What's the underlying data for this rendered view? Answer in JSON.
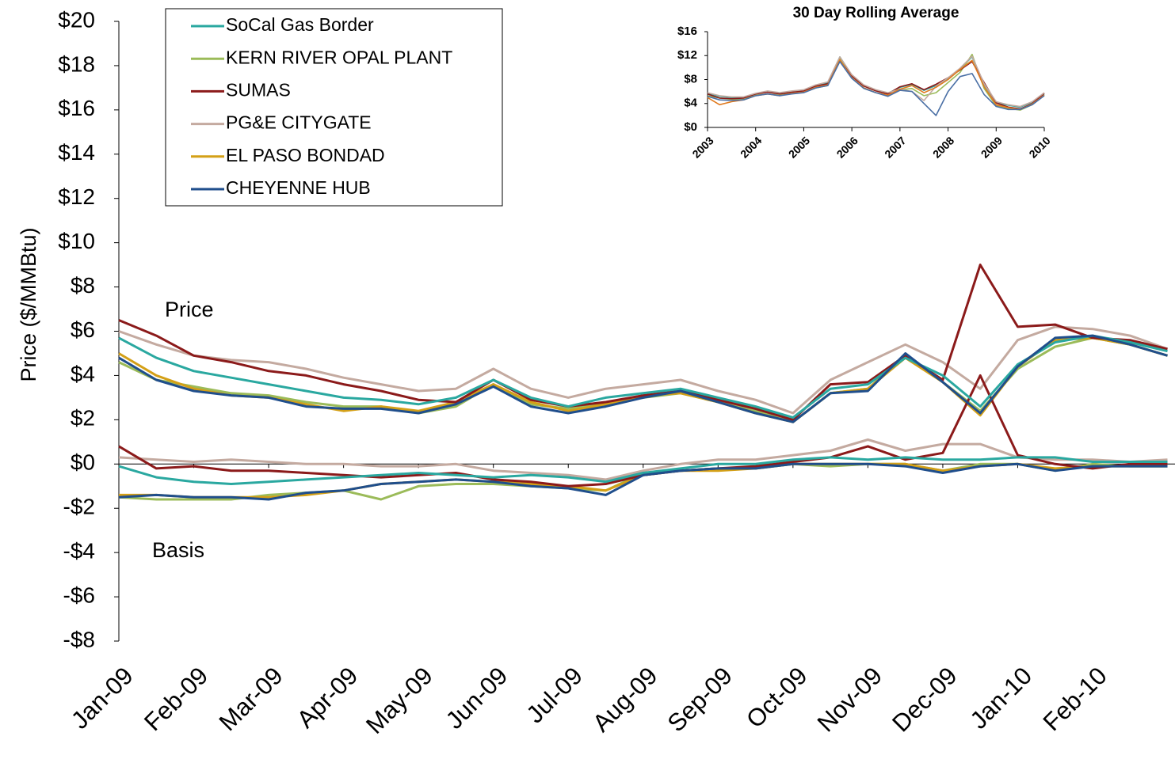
{
  "chart_data": [
    {
      "type": "line",
      "y_label": "Price ($/MMBtu)",
      "annotations": [
        "Price",
        "Basis"
      ],
      "legend": "upper left",
      "x": [
        0,
        0.5,
        1,
        1.5,
        2,
        2.5,
        3,
        3.5,
        4,
        4.5,
        5,
        5.5,
        6,
        6.5,
        7,
        7.5,
        8,
        8.5,
        9,
        9.5,
        10,
        10.5,
        11,
        11.5,
        12,
        12.5,
        13,
        13.5,
        14
      ],
      "xlim": [
        0,
        14.1
      ],
      "xticks": [
        {
          "value": 0,
          "label": "Jan-09"
        },
        {
          "value": 1,
          "label": "Feb-09"
        },
        {
          "value": 2,
          "label": "Mar-09"
        },
        {
          "value": 3,
          "label": "Apr-09"
        },
        {
          "value": 4,
          "label": "May-09"
        },
        {
          "value": 5,
          "label": "Jun-09"
        },
        {
          "value": 6,
          "label": "Jul-09"
        },
        {
          "value": 7,
          "label": "Aug-09"
        },
        {
          "value": 8,
          "label": "Sep-09"
        },
        {
          "value": 9,
          "label": "Oct-09"
        },
        {
          "value": 10,
          "label": "Nov-09"
        },
        {
          "value": 11,
          "label": "Dec-09"
        },
        {
          "value": 12,
          "label": "Jan-10"
        },
        {
          "value": 13,
          "label": "Feb-10"
        }
      ],
      "ylim": [
        -8,
        20
      ],
      "yticks": [
        {
          "value": 20,
          "label": "$20"
        },
        {
          "value": 18,
          "label": "$18"
        },
        {
          "value": 16,
          "label": "$16"
        },
        {
          "value": 14,
          "label": "$14"
        },
        {
          "value": 12,
          "label": "$12"
        },
        {
          "value": 10,
          "label": "$10"
        },
        {
          "value": 8,
          "label": "$8"
        },
        {
          "value": 6,
          "label": "$6"
        },
        {
          "value": 4,
          "label": "$4"
        },
        {
          "value": 2,
          "label": "$2"
        },
        {
          "value": 0,
          "label": "$0"
        },
        {
          "value": -2,
          "label": "-$2"
        },
        {
          "value": -4,
          "label": "-$4"
        },
        {
          "value": -6,
          "label": "-$6"
        },
        {
          "value": -8,
          "label": "-$8"
        }
      ],
      "series": [
        {
          "name": "SoCal Gas Border",
          "color": "#2aa8a0",
          "values": [
            5.7,
            4.8,
            4.2,
            3.9,
            3.6,
            3.3,
            3.0,
            2.9,
            2.7,
            3.0,
            3.8,
            3.0,
            2.6,
            3.0,
            3.2,
            3.4,
            3.0,
            2.6,
            2.1,
            3.4,
            3.6,
            4.8,
            4.0,
            2.6,
            4.5,
            5.5,
            5.8,
            5.5,
            5.1
          ],
          "basis": [
            -0.1,
            -0.6,
            -0.8,
            -0.9,
            -0.8,
            -0.7,
            -0.6,
            -0.5,
            -0.4,
            -0.5,
            -0.6,
            -0.5,
            -0.6,
            -0.8,
            -0.4,
            -0.2,
            0,
            0,
            0.2,
            0.3,
            0.2,
            0.3,
            0.2,
            0.2,
            0.3,
            0.3,
            0.1,
            0.1,
            0.1
          ]
        },
        {
          "name": "KERN RIVER OPAL PLANT",
          "color": "#9bbb59",
          "values": [
            4.6,
            3.8,
            3.5,
            3.2,
            3.1,
            2.8,
            2.6,
            2.6,
            2.3,
            2.6,
            3.6,
            2.7,
            2.5,
            2.7,
            3.0,
            3.2,
            2.8,
            2.4,
            1.9,
            3.2,
            3.4,
            4.9,
            3.7,
            2.4,
            4.3,
            5.3,
            5.7,
            5.4,
            4.9
          ],
          "basis": [
            -1.5,
            -1.6,
            -1.6,
            -1.6,
            -1.4,
            -1.3,
            -1.2,
            -1.6,
            -1,
            -0.9,
            -0.9,
            -1,
            -1.1,
            -1.2,
            -0.4,
            -0.3,
            -0.2,
            -0.2,
            0,
            -0.1,
            0,
            0,
            -0.3,
            0,
            0,
            -0.3,
            0,
            -0.1,
            -0.1
          ]
        },
        {
          "name": "SUMAS",
          "color": "#8b1a1a",
          "values": [
            6.5,
            5.8,
            4.9,
            4.6,
            4.2,
            4.0,
            3.6,
            3.3,
            2.9,
            2.8,
            3.8,
            2.9,
            2.6,
            2.8,
            3.1,
            3.3,
            2.9,
            2.5,
            2.0,
            3.6,
            3.7,
            4.9,
            3.8,
            9.0,
            6.2,
            6.3,
            5.7,
            5.6,
            5.2
          ],
          "basis": [
            0.8,
            -0.2,
            -0.1,
            -0.3,
            -0.3,
            -0.4,
            -0.5,
            -0.6,
            -0.5,
            -0.4,
            -0.7,
            -0.8,
            -1.0,
            -0.9,
            -0.5,
            -0.3,
            -0.2,
            -0.1,
            0.1,
            0.3,
            0.8,
            0.2,
            0.5,
            4.0,
            0.4,
            0,
            -0.2,
            0,
            0
          ]
        },
        {
          "name": "PG&E CITYGATE",
          "color": "#c4aaa0",
          "values": [
            6.0,
            5.4,
            4.9,
            4.7,
            4.6,
            4.3,
            3.9,
            3.6,
            3.3,
            3.4,
            4.3,
            3.4,
            3.0,
            3.4,
            3.6,
            3.8,
            3.3,
            2.9,
            2.3,
            3.8,
            4.6,
            5.4,
            4.6,
            3.4,
            5.6,
            6.2,
            6.1,
            5.8,
            5.2
          ],
          "basis": [
            0.3,
            0.2,
            0.1,
            0.2,
            0.1,
            0,
            0,
            -0.1,
            -0.1,
            0,
            -0.3,
            -0.4,
            -0.5,
            -0.7,
            -0.3,
            0,
            0.2,
            0.2,
            0.4,
            0.6,
            1.1,
            0.6,
            0.9,
            0.9,
            0.3,
            0.2,
            0.2,
            0.1,
            0.2
          ]
        },
        {
          "name": "EL PASO BONDAD",
          "color": "#d4a017",
          "values": [
            5.0,
            4.0,
            3.4,
            3.1,
            3.0,
            2.7,
            2.4,
            2.6,
            2.4,
            2.8,
            3.6,
            2.8,
            2.4,
            2.7,
            3.1,
            3.2,
            2.8,
            2.3,
            1.9,
            3.2,
            3.4,
            4.8,
            3.7,
            2.2,
            4.4,
            5.6,
            5.7,
            5.4,
            4.9
          ],
          "basis": [
            -1.4,
            -1.4,
            -1.5,
            -1.5,
            -1.5,
            -1.4,
            -1.2,
            -0.9,
            -0.8,
            -0.7,
            -0.8,
            -0.9,
            -1.0,
            -1.2,
            -0.5,
            -0.3,
            -0.3,
            -0.2,
            0,
            0,
            0,
            0,
            -0.3,
            -0.1,
            0,
            -0.2,
            -0.1,
            -0.1,
            -0.1
          ]
        },
        {
          "name": "CHEYENNE HUB",
          "color": "#1f4e8c",
          "values": [
            4.8,
            3.8,
            3.3,
            3.1,
            3.0,
            2.6,
            2.5,
            2.5,
            2.3,
            2.7,
            3.5,
            2.6,
            2.3,
            2.6,
            3.0,
            3.3,
            2.8,
            2.3,
            1.9,
            3.2,
            3.3,
            5.0,
            3.7,
            2.3,
            4.4,
            5.7,
            5.8,
            5.4,
            4.9
          ],
          "basis": [
            -1.5,
            -1.4,
            -1.5,
            -1.5,
            -1.6,
            -1.3,
            -1.2,
            -0.9,
            -0.8,
            -0.7,
            -0.8,
            -1.0,
            -1.1,
            -1.4,
            -0.5,
            -0.3,
            -0.2,
            -0.2,
            0,
            0,
            0,
            -0.1,
            -0.4,
            -0.1,
            0,
            -0.3,
            -0.1,
            -0.1,
            -0.1
          ]
        }
      ]
    },
    {
      "type": "line",
      "title": "30 Day Rolling Average",
      "x": [
        2003,
        2003.25,
        2003.5,
        2003.75,
        2004,
        2004.25,
        2004.5,
        2004.75,
        2005,
        2005.25,
        2005.5,
        2005.75,
        2006,
        2006.25,
        2006.5,
        2006.75,
        2007,
        2007.25,
        2007.5,
        2007.75,
        2008,
        2008.25,
        2008.5,
        2008.75,
        2009,
        2009.25,
        2009.5,
        2009.75,
        2010
      ],
      "xlim": [
        2003,
        2010
      ],
      "xticks": [
        2003,
        2004,
        2005,
        2006,
        2007,
        2008,
        2009,
        2010
      ],
      "ylim": [
        0,
        16
      ],
      "yticks": [
        {
          "value": 16,
          "label": "$16"
        },
        {
          "value": 12,
          "label": "$12"
        },
        {
          "value": 8,
          "label": "$8"
        },
        {
          "value": 4,
          "label": "$4"
        },
        {
          "value": 0,
          "label": "$0"
        }
      ],
      "series": [
        {
          "color": "#2aa8a0",
          "values": [
            5.7,
            5.2,
            5.0,
            5.0,
            5.6,
            6.0,
            5.7,
            6.0,
            6.2,
            7.0,
            7.5,
            11.8,
            8.7,
            7.0,
            6.2,
            5.7,
            6.7,
            7.2,
            6.2,
            7.0,
            8.2,
            9.8,
            11.8,
            7.2,
            4.2,
            3.7,
            3.4,
            4.2,
            5.6
          ]
        },
        {
          "color": "#9bbb59",
          "values": [
            5.3,
            4.9,
            4.7,
            4.7,
            5.4,
            5.6,
            5.4,
            5.7,
            5.9,
            6.6,
            7.0,
            11.6,
            8.3,
            6.6,
            5.8,
            5.4,
            6.3,
            6.5,
            5.3,
            5.8,
            7.5,
            9.2,
            12.2,
            6.5,
            3.6,
            3.2,
            2.9,
            3.8,
            5.4
          ]
        },
        {
          "color": "#8b1a1a",
          "values": [
            5.6,
            4.9,
            4.8,
            4.9,
            5.6,
            5.9,
            5.6,
            5.9,
            6.1,
            6.9,
            7.3,
            11.2,
            8.6,
            6.9,
            6.1,
            5.6,
            6.8,
            7.3,
            6.3,
            7.2,
            8.3,
            9.6,
            11.0,
            7.5,
            4.1,
            3.4,
            3.1,
            4.0,
            5.7
          ]
        },
        {
          "color": "#c4aaa0",
          "values": [
            5.8,
            5.3,
            5.1,
            5.1,
            5.7,
            6.1,
            5.8,
            6.1,
            6.3,
            7.1,
            7.6,
            11.8,
            8.8,
            7.1,
            6.3,
            5.8,
            6.4,
            6.0,
            4.5,
            6.9,
            8.3,
            9.9,
            11.9,
            7.3,
            4.3,
            3.8,
            3.5,
            4.3,
            5.8
          ]
        },
        {
          "color": "#e07b20",
          "values": [
            5.0,
            3.8,
            4.3,
            4.6,
            5.3,
            5.6,
            5.3,
            5.7,
            5.9,
            6.7,
            7.1,
            11.3,
            8.3,
            6.6,
            5.8,
            5.4,
            6.4,
            7.0,
            5.8,
            6.7,
            8.0,
            9.7,
            11.2,
            6.8,
            3.8,
            3.3,
            3.0,
            3.9,
            5.4
          ]
        },
        {
          "color": "#4a6fa5",
          "values": [
            5.2,
            4.6,
            4.5,
            4.6,
            5.3,
            5.6,
            5.3,
            5.6,
            5.8,
            6.6,
            7.0,
            11.0,
            8.2,
            6.5,
            5.8,
            5.2,
            6.2,
            6.0,
            4.0,
            2.0,
            6.0,
            8.5,
            9.0,
            5.5,
            3.5,
            3.0,
            3.0,
            3.8,
            5.3
          ]
        }
      ]
    }
  ]
}
